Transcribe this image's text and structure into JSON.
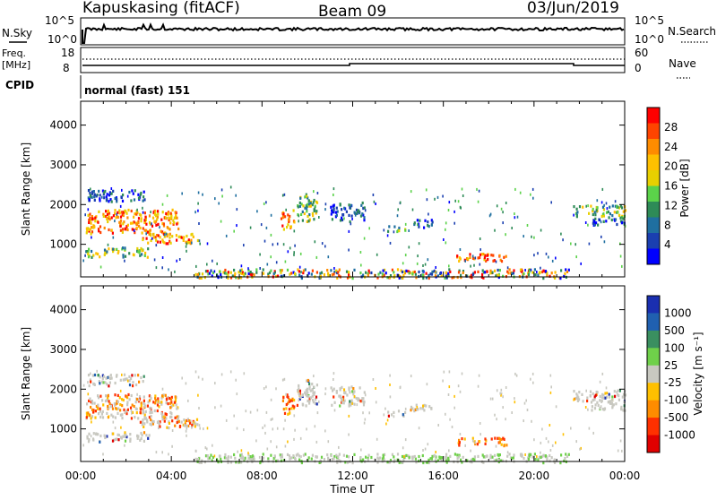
{
  "header": {
    "station": "Kapuskasing (fitACF)",
    "beam": "Beam 09",
    "date": "03/Jun/2019"
  },
  "aux_panels": {
    "nsky_label": "N.Sky",
    "nsearch_label": "N.Search",
    "noise_ticks_left": [
      "10^5",
      "10^0"
    ],
    "noise_ticks_right": [
      "10^5",
      "10^0"
    ],
    "freq_label_line1": "Freq.",
    "freq_label_line2": "[MHz]",
    "freq_ticks": [
      "18",
      "8"
    ],
    "nave_label": "Nave",
    "nave_ticks": [
      "60",
      "0"
    ],
    "cpid_label": "CPID",
    "cpid_value": "normal (fast) 151"
  },
  "power_colorbar": {
    "label": "Power [dB]",
    "ticks": [
      "28",
      "24",
      "20",
      "16",
      "12",
      "8",
      "4"
    ],
    "colors": [
      "#ff0000",
      "#ff4400",
      "#ff8c00",
      "#ffc000",
      "#e8d000",
      "#5bd24a",
      "#2e8b57",
      "#1f6fa0",
      "#1a3fb0",
      "#0000ff"
    ]
  },
  "velocity_colorbar": {
    "label": "Velocity [m s⁻¹]",
    "ticks": [
      "1000",
      "500",
      "100",
      "25",
      "-25",
      "-100",
      "-500",
      "-1000"
    ],
    "colors": [
      "#1a2fb0",
      "#2060b0",
      "#3a8f60",
      "#6fd04a",
      "#c8c8c0",
      "#ffc000",
      "#ff8c00",
      "#ff3000",
      "#e00000"
    ]
  },
  "chart_data": {
    "type": "heatmap",
    "ylabel": "Slant Range [km]",
    "xlabel": "Time UT",
    "x_ticks": [
      "00:00",
      "04:00",
      "08:00",
      "12:00",
      "16:00",
      "20:00",
      "00:00"
    ],
    "y_ticks": [
      "1000",
      "2000",
      "3000",
      "4000"
    ],
    "ylim": [
      180,
      4600
    ],
    "xlim_hours": [
      0,
      24
    ],
    "power_regions": [
      {
        "t0": 0.2,
        "t1": 4.3,
        "r0": 1300,
        "r1": 1900,
        "level": "high"
      },
      {
        "t0": 0.3,
        "t1": 2.8,
        "r0": 2100,
        "r1": 2400,
        "level": "low"
      },
      {
        "t0": 2.6,
        "t1": 5.2,
        "r0": 1050,
        "r1": 1300,
        "level": "high"
      },
      {
        "t0": 0.2,
        "t1": 3.0,
        "r0": 700,
        "r1": 950,
        "level": "mid"
      },
      {
        "t0": 8.8,
        "t1": 9.4,
        "r0": 1400,
        "r1": 1900,
        "level": "high"
      },
      {
        "t0": 9.5,
        "t1": 10.4,
        "r0": 1600,
        "r1": 2300,
        "level": "mid"
      },
      {
        "t0": 11.0,
        "t1": 12.5,
        "r0": 1600,
        "r1": 2100,
        "level": "low"
      },
      {
        "t0": 13.5,
        "t1": 14.3,
        "r0": 1350,
        "r1": 1500,
        "level": "mid"
      },
      {
        "t0": 14.5,
        "t1": 15.5,
        "r0": 1450,
        "r1": 1650,
        "level": "low"
      },
      {
        "t0": 16.5,
        "t1": 18.8,
        "r0": 600,
        "r1": 800,
        "level": "high"
      },
      {
        "t0": 21.7,
        "t1": 24.0,
        "r0": 1700,
        "r1": 2000,
        "level": "mid"
      },
      {
        "t0": 22.5,
        "t1": 24.0,
        "r0": 1500,
        "r1": 1700,
        "level": "low"
      },
      {
        "t0": 5.0,
        "t1": 21.5,
        "r0": 180,
        "r1": 400,
        "level": "groundscatter"
      }
    ]
  }
}
